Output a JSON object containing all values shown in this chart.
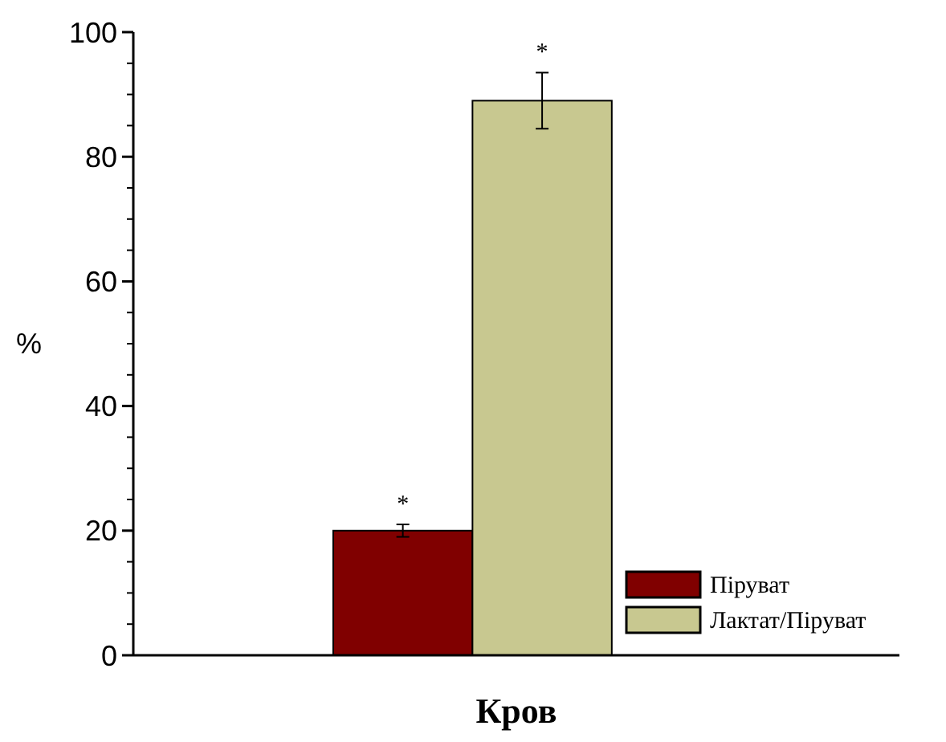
{
  "chart_data": {
    "type": "bar",
    "xlabel": "Кров",
    "ylabel": "%",
    "categories": [
      null
    ],
    "series": [
      {
        "name": "Піруват",
        "color": "#800000",
        "values": [
          20
        ],
        "errors": [
          1
        ]
      },
      {
        "name": "Лактат/Піруват",
        "color": "#c8c890",
        "values": [
          89
        ],
        "errors": [
          4.5
        ]
      }
    ],
    "ylim": [
      0,
      100
    ],
    "yticks": [
      0,
      20,
      40,
      60,
      80,
      100
    ],
    "annotations": [
      "*",
      "*"
    ],
    "legend": "bottom right",
    "grid": false
  }
}
